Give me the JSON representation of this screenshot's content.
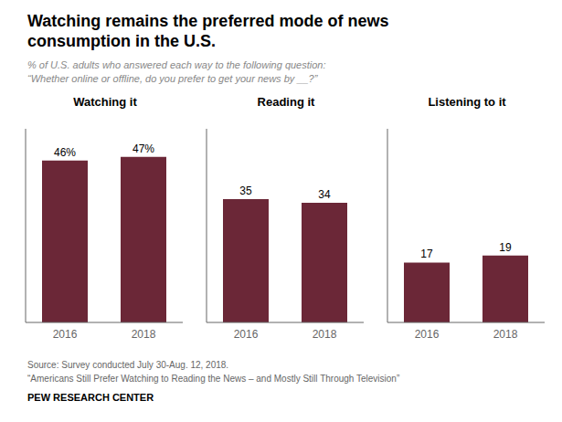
{
  "title": "Watching remains the preferred mode of news\nconsumption in the U.S.",
  "subtitle": "% of U.S. adults who answered each way to the following question:\n“Whether online or offline, do you prefer to get your news by __?”",
  "annotations": [
    "Source: Survey conducted July 30-Aug. 12, 2018.",
    "“Americans Still Prefer Watching to Reading the News – and Mostly Still Through Television”",
    "PEW RESEARCH CENTER"
  ],
  "chart_data": [
    {
      "type": "bar",
      "title": "Watching it",
      "categories": [
        "2016",
        "2018"
      ],
      "values": [
        46,
        47
      ],
      "value_labels": [
        "46%",
        "47%"
      ],
      "data_labels": true,
      "color": "#6b2737",
      "ylim": [
        0,
        55
      ],
      "tick_labels": "x",
      "grid": false
    },
    {
      "type": "bar",
      "title": "Reading it",
      "categories": [
        "2016",
        "2018"
      ],
      "values": [
        35,
        34
      ],
      "data_labels": true,
      "color": "#6b2737",
      "ylim": [
        0,
        55
      ],
      "tick_labels": "x",
      "grid": false
    },
    {
      "type": "bar",
      "title": "Listening to it",
      "categories": [
        "2016",
        "2018"
      ],
      "values": [
        17,
        19
      ],
      "data_labels": true,
      "color": "#6b2737",
      "ylim": [
        0,
        55
      ],
      "tick_labels": "x",
      "grid": false
    }
  ]
}
